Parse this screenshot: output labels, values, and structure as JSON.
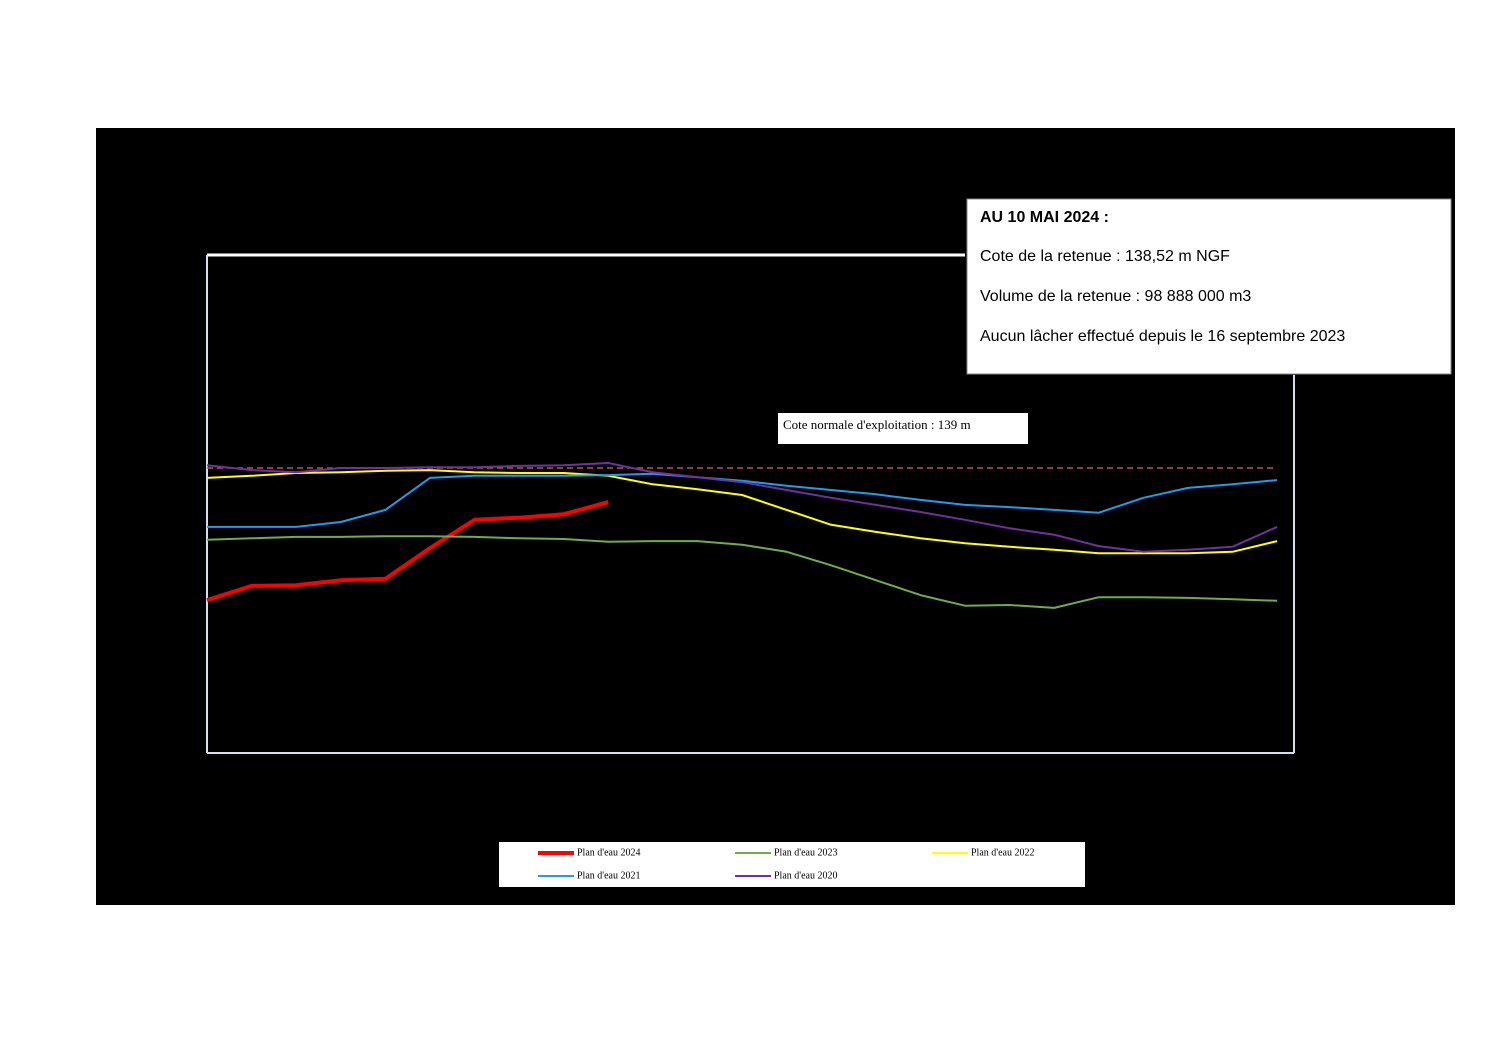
{
  "chart_data": {
    "type": "line",
    "x": [
      0,
      15,
      30,
      45,
      60,
      75,
      90,
      105,
      120,
      135,
      150,
      165,
      180,
      195,
      210,
      225,
      240,
      255,
      270,
      285,
      300,
      315,
      330,
      345,
      360
    ],
    "xlim": [
      0,
      365
    ],
    "ylim": [
      135,
      142
    ],
    "series": [
      {
        "name": "Plan d'eau 2024",
        "color": "#ff0000",
        "width": 4,
        "values": [
          137.14,
          137.34,
          137.35,
          137.42,
          137.44,
          137.87,
          138.27,
          138.3,
          138.35,
          138.52,
          null,
          null,
          null,
          null,
          null,
          null,
          null,
          null,
          null,
          null,
          null,
          null,
          null,
          null,
          null
        ]
      },
      {
        "name": "Plan d'eau 2023",
        "color": "#70ad47",
        "width": 2,
        "values": [
          137.99,
          138.01,
          138.03,
          138.03,
          138.04,
          138.04,
          138.03,
          138.01,
          138.0,
          137.96,
          137.97,
          137.97,
          137.92,
          137.82,
          137.63,
          137.42,
          137.21,
          137.06,
          137.07,
          137.03,
          137.18,
          137.18,
          137.17,
          137.15,
          137.13
        ]
      },
      {
        "name": "Plan d'eau 2022",
        "color": "#ffff00",
        "width": 2,
        "values": [
          138.86,
          138.89,
          138.93,
          138.94,
          138.96,
          138.97,
          138.94,
          138.93,
          138.93,
          138.89,
          138.77,
          138.7,
          138.62,
          138.41,
          138.2,
          138.1,
          138.01,
          137.94,
          137.89,
          137.85,
          137.8,
          137.8,
          137.8,
          137.82,
          137.97
        ]
      },
      {
        "name": "Plan d'eau 2021",
        "color": "#1f9bf0",
        "width": 2,
        "values": [
          138.17,
          138.17,
          138.17,
          138.24,
          138.41,
          138.86,
          138.89,
          138.89,
          138.89,
          138.9,
          138.92,
          138.87,
          138.82,
          138.75,
          138.69,
          138.63,
          138.55,
          138.48,
          138.45,
          138.41,
          138.37,
          138.58,
          138.72,
          138.77,
          138.83
        ]
      },
      {
        "name": "Plan d'eau 2020",
        "color": "#7030a0",
        "width": 2,
        "values": [
          139.04,
          138.97,
          138.94,
          139.0,
          139.0,
          139.01,
          139.01,
          139.03,
          139.04,
          139.07,
          138.94,
          138.87,
          138.8,
          138.69,
          138.58,
          138.48,
          138.38,
          138.27,
          138.15,
          138.06,
          137.9,
          137.82,
          137.85,
          137.89,
          138.17
        ]
      }
    ],
    "reference_line": {
      "value": 139,
      "label": "Cote normale d'exploitation : 139 m",
      "color": "#c0504d"
    },
    "annotation": {
      "title": "AU 10 MAI 2024 :",
      "lines": [
        "Cote de la retenue : 138,52 m NGF",
        "Volume de la retenue : 98 888 000 m3",
        "Aucun lâcher effectué depuis le 16 septembre 2023"
      ]
    }
  }
}
